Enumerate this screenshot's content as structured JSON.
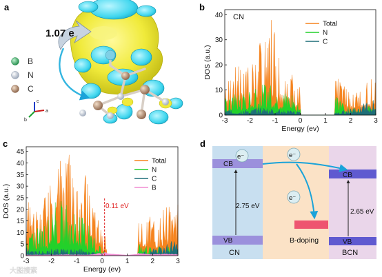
{
  "panels": {
    "a": {
      "letter": "a",
      "charge_label": "1.07 e",
      "legend": [
        {
          "name": "B",
          "color": "#2e9e5a"
        },
        {
          "name": "N",
          "color": "#b8c4d6"
        },
        {
          "name": "C",
          "color": "#a9856b"
        }
      ],
      "axes": {
        "a": "a",
        "b": "b",
        "c": "c"
      }
    },
    "b": {
      "letter": "b",
      "tag": "CN"
    },
    "c": {
      "letter": "c",
      "annotation": "0.11 eV"
    },
    "d": {
      "letter": "d",
      "left": {
        "cb": "CB",
        "vb": "VB",
        "gap": "2.75 eV",
        "name": "CN"
      },
      "right": {
        "cb": "CB",
        "vb": "VB",
        "gap": "2.65 eV",
        "name": "BCN"
      },
      "middle_label": "B-doping",
      "electron": "e⁻"
    }
  },
  "watermark": "大图搜索",
  "chart_data": [
    {
      "type": "area",
      "panel": "b",
      "xlabel": "Energy (ev)",
      "ylabel": "DOS (a.u.)",
      "xlim": [
        -3,
        3
      ],
      "ylim": [
        0,
        42
      ],
      "xticks": [
        -3,
        -2,
        -1,
        0,
        1,
        2,
        3
      ],
      "yticks": [
        0,
        10,
        20,
        30,
        40
      ],
      "legend_position": "top-right",
      "series": [
        {
          "name": "Total",
          "color": "#f5841f",
          "x": [
            -3.0,
            -2.7,
            -2.4,
            -2.0,
            -1.7,
            -1.4,
            -1.1,
            -0.9,
            -0.6,
            -0.3,
            -0.1,
            1.42,
            2.0,
            2.3,
            2.6,
            2.9,
            3.0
          ],
          "y": [
            17,
            16,
            24,
            22,
            28,
            33,
            41,
            25,
            22,
            18,
            14,
            16,
            10,
            11,
            13,
            16,
            17
          ]
        },
        {
          "name": "N",
          "color": "#22d12a",
          "x": [
            -3.0,
            -2.7,
            -2.4,
            -2.0,
            -1.7,
            -1.4,
            -1.1,
            -0.9,
            -0.6,
            -0.3,
            -0.1,
            1.42,
            2.0,
            2.3,
            2.6,
            2.9,
            3.0
          ],
          "y": [
            7,
            8,
            9,
            10,
            13,
            12,
            14,
            12,
            10,
            9,
            6,
            8,
            3,
            3,
            4,
            3,
            3
          ]
        },
        {
          "name": "C",
          "color": "#1e6e78",
          "x": [
            -3.0,
            -2.7,
            -2.4,
            -2.0,
            -1.7,
            -1.4,
            -1.1,
            -0.9,
            -0.6,
            -0.3,
            -0.1,
            1.42,
            2.0,
            2.3,
            2.6,
            2.9,
            3.0
          ],
          "y": [
            2,
            2,
            2.5,
            2,
            3,
            3,
            3,
            2.5,
            2,
            2,
            1.5,
            1,
            3,
            4,
            5,
            6,
            7
          ]
        }
      ]
    },
    {
      "type": "area",
      "panel": "c",
      "xlabel": "Energy (ev)",
      "ylabel": "DOS (a.u.)",
      "xlim": [
        -3,
        3
      ],
      "ylim": [
        0,
        47
      ],
      "xticks": [
        -3,
        -2,
        -1,
        0,
        1,
        2,
        3
      ],
      "yticks": [
        0,
        5,
        10,
        15,
        20,
        25,
        30,
        35,
        40,
        45
      ],
      "legend_position": "top-right",
      "series": [
        {
          "name": "Total",
          "color": "#f5841f",
          "x": [
            -3.0,
            -2.7,
            -2.4,
            -2.1,
            -1.8,
            -1.5,
            -1.2,
            -1.0,
            -0.7,
            -0.5,
            0.1,
            1.5,
            2.0,
            2.3,
            2.6,
            2.9,
            3.0
          ],
          "y": [
            26,
            19,
            22,
            33,
            37,
            45,
            44,
            30,
            38,
            27,
            10,
            21,
            16,
            19,
            22,
            18,
            25
          ]
        },
        {
          "name": "N",
          "color": "#22d12a",
          "x": [
            -3.0,
            -2.7,
            -2.4,
            -2.1,
            -1.8,
            -1.5,
            -1.2,
            -1.0,
            -0.7,
            -0.5,
            0.1,
            1.5,
            2.0,
            2.3,
            2.6,
            2.9,
            3.0
          ],
          "y": [
            8,
            10,
            15,
            20,
            24,
            24,
            22,
            19,
            19,
            13,
            2,
            5,
            4,
            4,
            4,
            3,
            4
          ]
        },
        {
          "name": "C",
          "color": "#1e6e78",
          "x": [
            -3.0,
            -2.7,
            -2.4,
            -2.1,
            -1.8,
            -1.5,
            -1.2,
            -1.0,
            -0.7,
            -0.5,
            0.1,
            1.5,
            2.0,
            2.3,
            2.6,
            2.9,
            3.0
          ],
          "y": [
            4,
            2,
            3,
            3,
            3,
            3,
            3,
            3,
            3,
            2,
            1,
            1,
            3,
            4,
            6,
            7,
            8
          ]
        },
        {
          "name": "B",
          "color": "#f08cd2",
          "x": [
            -3.0,
            -2.5,
            -2.0,
            -1.5,
            -1.0,
            -0.5,
            0.1,
            1.0,
            1.5,
            2.0,
            2.5,
            3.0
          ],
          "y": [
            0.4,
            0.4,
            0.4,
            0.5,
            0.5,
            0.4,
            1.5,
            0.4,
            1.2,
            0.6,
            0.8,
            0.6
          ]
        }
      ]
    }
  ]
}
